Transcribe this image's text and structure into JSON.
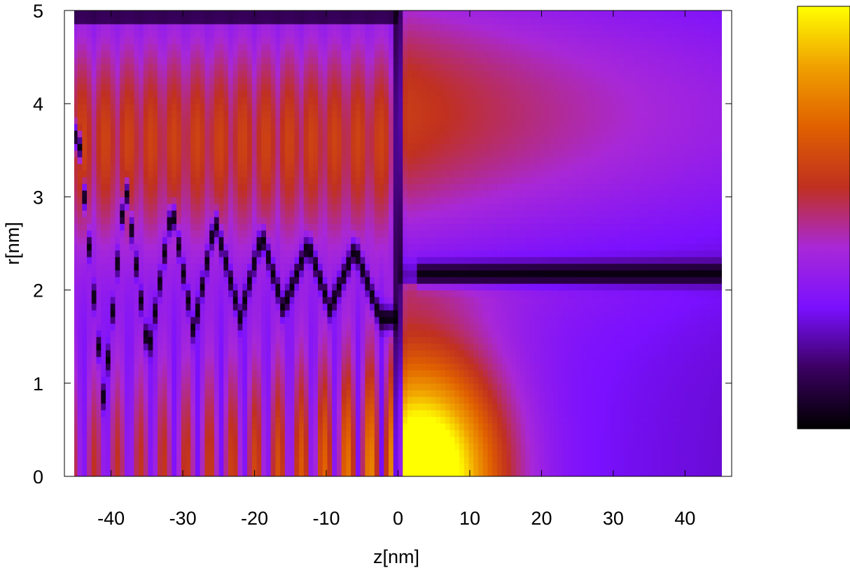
{
  "chart_data": {
    "type": "heatmap",
    "title": "",
    "xlabel": "z[nm]",
    "ylabel": "r[nm]",
    "xlim": [
      -46.5,
      46.5
    ],
    "ylim": [
      0,
      5
    ],
    "data_x_extent": [
      -46,
      46
    ],
    "x_ticks": [
      -40,
      -30,
      -20,
      -10,
      0,
      10,
      20,
      30,
      40
    ],
    "x_tick_labels": [
      "-40",
      "-30",
      "-20",
      "-10",
      "0",
      "10",
      "20",
      "30",
      "40"
    ],
    "y_ticks": [
      0,
      1,
      2,
      3,
      4,
      5
    ],
    "y_tick_labels": [
      "0",
      "1",
      "2",
      "3",
      "4",
      "5"
    ],
    "grid": false,
    "colorscale": [
      "#000000",
      "#3a0060",
      "#7a10ff",
      "#a828d8",
      "#c03020",
      "#e06000",
      "#f0a000",
      "#ffff00"
    ],
    "colorbar": {
      "tick_labels": [],
      "range": [
        0,
        1
      ]
    },
    "features": {
      "node_line_z": 0,
      "interface_r": 2.1,
      "left_zigzag_peaks_z": [
        -44.5,
        -38,
        -31.5,
        -25.5,
        -19,
        -12.5,
        -6
      ],
      "left_zigzag_peaks_r": [
        3.65,
        3.15,
        2.9,
        2.75,
        2.6,
        2.5,
        2.45
      ],
      "left_zigzag_valleys_z": [
        -41,
        -34.8,
        -28.5,
        -22,
        -16,
        -9.5,
        -2.5
      ],
      "left_zigzag_valleys_r": [
        0.8,
        1.3,
        1.55,
        1.7,
        1.8,
        1.8,
        1.7
      ],
      "hot_spot_z": 3.5,
      "hot_spot_r": 0
    }
  }
}
